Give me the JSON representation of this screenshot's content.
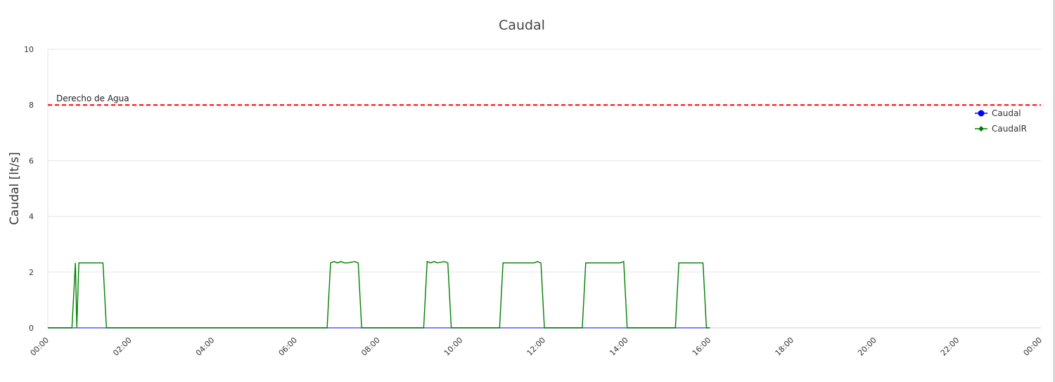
{
  "chart_data": {
    "type": "line",
    "title": "Caudal",
    "ylabel": "Caudal [lt/s]",
    "xlabel": "",
    "ylim": [
      0,
      10
    ],
    "yticks": [
      "0",
      "2",
      "4",
      "6",
      "8",
      "10"
    ],
    "xlim_hours": [
      0,
      24
    ],
    "xticks": [
      "00:00",
      "02:00",
      "04:00",
      "06:00",
      "08:00",
      "10:00",
      "12:00",
      "14:00",
      "16:00",
      "18:00",
      "20:00",
      "22:00",
      "00:00"
    ],
    "grid": true,
    "legend_position": "right",
    "series": [
      {
        "name": "Caudal",
        "color": "#0000ff",
        "marker": "circle",
        "x": [
          "00:00",
          "16:00"
        ],
        "y": [
          0,
          0
        ]
      },
      {
        "name": "CaudalR",
        "color": "#008000",
        "marker": "diamond",
        "x": [
          "00:00",
          "00:35",
          "00:40",
          "00:42",
          "00:45",
          "00:48",
          "01:20",
          "01:25",
          "06:45",
          "06:50",
          "06:55",
          "07:00",
          "07:05",
          "07:10",
          "07:15",
          "07:25",
          "07:30",
          "07:35",
          "09:05",
          "09:10",
          "09:15",
          "09:20",
          "09:25",
          "09:35",
          "09:40",
          "09:45",
          "10:55",
          "11:00",
          "11:45",
          "11:50",
          "11:55",
          "12:00",
          "12:55",
          "13:00",
          "13:50",
          "13:55",
          "14:00",
          "15:10",
          "15:15",
          "15:50",
          "15:55",
          "16:00"
        ],
        "y": [
          0,
          0,
          2.33,
          0,
          2.33,
          2.33,
          2.33,
          0,
          0,
          2.33,
          2.38,
          2.33,
          2.38,
          2.33,
          2.33,
          2.38,
          2.33,
          0,
          0,
          2.38,
          2.33,
          2.38,
          2.33,
          2.38,
          2.33,
          0,
          0,
          2.33,
          2.33,
          2.38,
          2.33,
          0,
          0,
          2.33,
          2.33,
          2.38,
          0,
          0,
          2.33,
          2.33,
          0,
          0
        ]
      }
    ],
    "reference_line": {
      "label": "Derecho de Agua",
      "value": 8,
      "color": "#ff0000",
      "style": "dashed"
    },
    "colors": {
      "grid": "#e6e6e6",
      "axis": "#ccccdd"
    }
  }
}
